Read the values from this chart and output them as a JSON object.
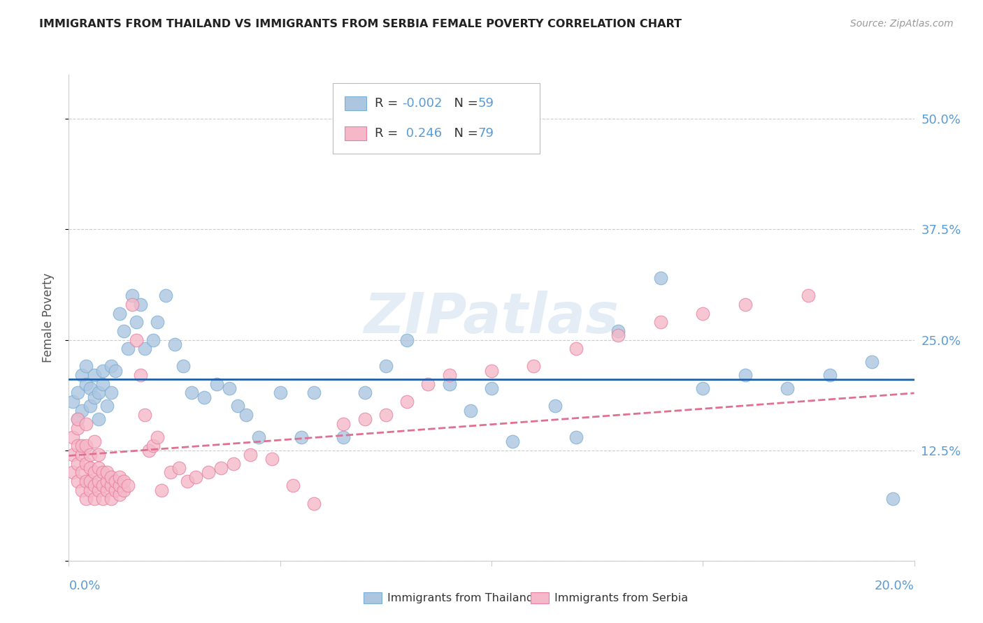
{
  "title": "IMMIGRANTS FROM THAILAND VS IMMIGRANTS FROM SERBIA FEMALE POVERTY CORRELATION CHART",
  "source": "Source: ZipAtlas.com",
  "ylabel": "Female Poverty",
  "xlim": [
    0.0,
    0.2
  ],
  "ylim": [
    0.0,
    0.55
  ],
  "yticks": [
    0.0,
    0.125,
    0.25,
    0.375,
    0.5
  ],
  "ytick_labels": [
    "",
    "12.5%",
    "25.0%",
    "37.5%",
    "50.0%"
  ],
  "xticks": [
    0.0,
    0.05,
    0.1,
    0.15,
    0.2
  ],
  "grid_color": "#cccccc",
  "background_color": "#ffffff",
  "title_color": "#222222",
  "axis_label_color": "#5b9bd5",
  "ylabel_color": "#555555",
  "thailand_color": "#adc6e0",
  "serbia_color": "#f4b8c8",
  "thailand_edge": "#7bafd4",
  "serbia_edge": "#e880a0",
  "regression_thailand_color": "#1f5fa6",
  "regression_serbia_color": "#e07090",
  "thailand_R": -0.002,
  "thailand_N": 59,
  "serbia_R": 0.246,
  "serbia_N": 79,
  "watermark": "ZIPatlas",
  "legend_R_color": "#222222",
  "legend_N_color": "#1f5fa6",
  "thailand_scatter_x": [
    0.001,
    0.002,
    0.002,
    0.003,
    0.003,
    0.004,
    0.004,
    0.005,
    0.005,
    0.006,
    0.006,
    0.007,
    0.007,
    0.008,
    0.008,
    0.009,
    0.01,
    0.01,
    0.011,
    0.012,
    0.013,
    0.014,
    0.015,
    0.016,
    0.017,
    0.018,
    0.02,
    0.021,
    0.023,
    0.025,
    0.027,
    0.029,
    0.032,
    0.035,
    0.038,
    0.04,
    0.042,
    0.045,
    0.05,
    0.055,
    0.058,
    0.065,
    0.07,
    0.075,
    0.08,
    0.09,
    0.095,
    0.1,
    0.105,
    0.115,
    0.12,
    0.13,
    0.14,
    0.15,
    0.16,
    0.17,
    0.18,
    0.19,
    0.195
  ],
  "thailand_scatter_y": [
    0.18,
    0.19,
    0.16,
    0.21,
    0.17,
    0.2,
    0.22,
    0.195,
    0.175,
    0.185,
    0.21,
    0.19,
    0.16,
    0.2,
    0.215,
    0.175,
    0.22,
    0.19,
    0.215,
    0.28,
    0.26,
    0.24,
    0.3,
    0.27,
    0.29,
    0.24,
    0.25,
    0.27,
    0.3,
    0.245,
    0.22,
    0.19,
    0.185,
    0.2,
    0.195,
    0.175,
    0.165,
    0.14,
    0.19,
    0.14,
    0.19,
    0.14,
    0.19,
    0.22,
    0.25,
    0.2,
    0.17,
    0.195,
    0.135,
    0.175,
    0.14,
    0.26,
    0.32,
    0.195,
    0.21,
    0.195,
    0.21,
    0.225,
    0.07
  ],
  "serbia_scatter_x": [
    0.001,
    0.001,
    0.001,
    0.002,
    0.002,
    0.002,
    0.002,
    0.002,
    0.003,
    0.003,
    0.003,
    0.003,
    0.004,
    0.004,
    0.004,
    0.004,
    0.004,
    0.005,
    0.005,
    0.005,
    0.005,
    0.006,
    0.006,
    0.006,
    0.006,
    0.007,
    0.007,
    0.007,
    0.007,
    0.008,
    0.008,
    0.008,
    0.009,
    0.009,
    0.009,
    0.01,
    0.01,
    0.01,
    0.011,
    0.011,
    0.012,
    0.012,
    0.012,
    0.013,
    0.013,
    0.014,
    0.015,
    0.016,
    0.017,
    0.018,
    0.019,
    0.02,
    0.021,
    0.022,
    0.024,
    0.026,
    0.028,
    0.03,
    0.033,
    0.036,
    0.039,
    0.043,
    0.048,
    0.053,
    0.058,
    0.065,
    0.07,
    0.075,
    0.08,
    0.085,
    0.09,
    0.1,
    0.11,
    0.12,
    0.13,
    0.14,
    0.15,
    0.16,
    0.175
  ],
  "serbia_scatter_y": [
    0.1,
    0.12,
    0.14,
    0.09,
    0.11,
    0.13,
    0.15,
    0.16,
    0.08,
    0.1,
    0.12,
    0.13,
    0.07,
    0.09,
    0.11,
    0.13,
    0.155,
    0.08,
    0.09,
    0.105,
    0.12,
    0.07,
    0.085,
    0.1,
    0.135,
    0.08,
    0.09,
    0.105,
    0.12,
    0.07,
    0.085,
    0.1,
    0.08,
    0.09,
    0.1,
    0.07,
    0.085,
    0.095,
    0.08,
    0.09,
    0.075,
    0.085,
    0.095,
    0.08,
    0.09,
    0.085,
    0.29,
    0.25,
    0.21,
    0.165,
    0.125,
    0.13,
    0.14,
    0.08,
    0.1,
    0.105,
    0.09,
    0.095,
    0.1,
    0.105,
    0.11,
    0.12,
    0.115,
    0.085,
    0.065,
    0.155,
    0.16,
    0.165,
    0.18,
    0.2,
    0.21,
    0.215,
    0.22,
    0.24,
    0.255,
    0.27,
    0.28,
    0.29,
    0.3
  ]
}
